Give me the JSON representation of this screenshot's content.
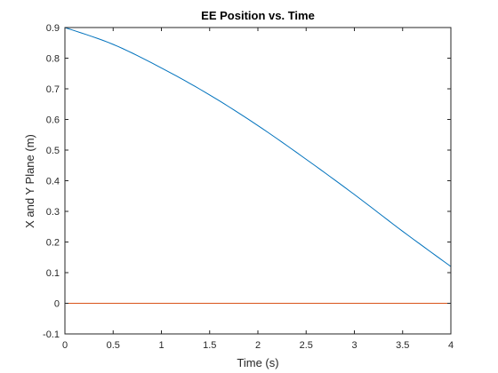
{
  "chart_data": {
    "type": "line",
    "title": "EE Position vs. Time",
    "xlabel": "Time (s)",
    "ylabel": "X and Y Plane (m)",
    "xlim": [
      0,
      4
    ],
    "ylim": [
      -0.1,
      0.9
    ],
    "xticks": [
      0,
      0.5,
      1,
      1.5,
      2,
      2.5,
      3,
      3.5,
      4
    ],
    "xtick_labels": [
      "0",
      "0.5",
      "1",
      "1.5",
      "2",
      "2.5",
      "3",
      "3.5",
      "4"
    ],
    "yticks": [
      -0.1,
      0,
      0.1,
      0.2,
      0.3,
      0.4,
      0.5,
      0.6,
      0.7,
      0.8,
      0.9
    ],
    "ytick_labels": [
      "-0.1",
      "0",
      "0.1",
      "0.2",
      "0.3",
      "0.4",
      "0.5",
      "0.6",
      "0.7",
      "0.8",
      "0.9"
    ],
    "grid": false,
    "legend": "none",
    "series": [
      {
        "color": "#0072BD",
        "x": [
          0,
          0.5,
          1,
          1.5,
          2,
          2.5,
          3,
          3.5,
          4
        ],
        "y": [
          0.9,
          0.845,
          0.768,
          0.68,
          0.58,
          0.47,
          0.355,
          0.235,
          0.12
        ]
      },
      {
        "color": "#D95319",
        "x": [
          0,
          4
        ],
        "y": [
          0,
          0
        ]
      }
    ]
  }
}
